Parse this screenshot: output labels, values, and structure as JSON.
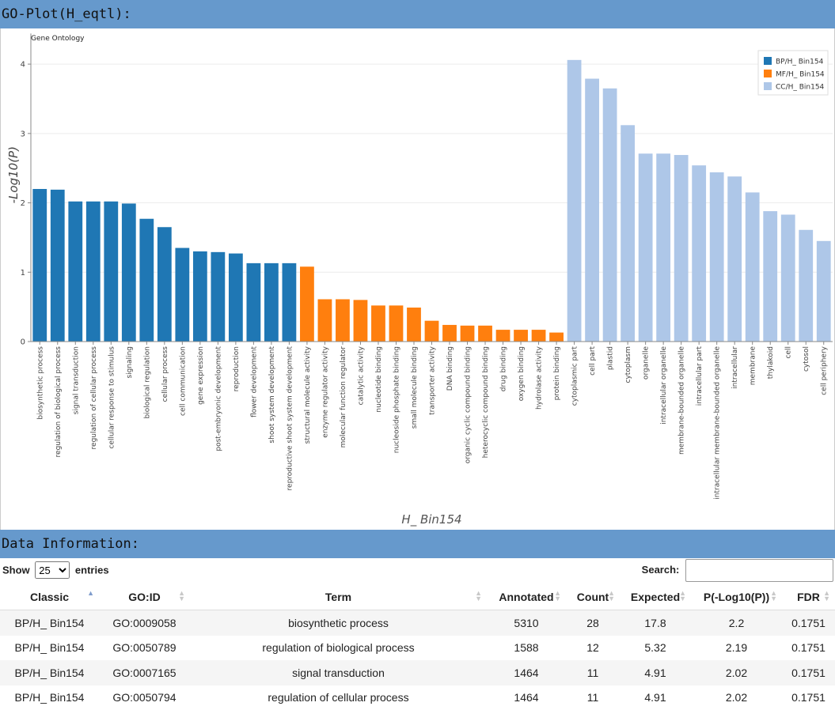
{
  "header": {
    "title": "GO-Plot(H_eqtl):"
  },
  "chart_data": {
    "type": "bar",
    "title": "Gene Ontology",
    "xlabel": "H_  Bin154",
    "ylabel": "-Log10(P)",
    "ylim": [
      0,
      4.35
    ],
    "yticks": [
      0,
      1,
      2,
      3,
      4
    ],
    "legend_position": "top-right",
    "series": [
      {
        "name": "BP/H_  Bin154",
        "color": "#1f77b4",
        "categories": [
          "biosynthetic process",
          "regulation of biological process",
          "signal transduction",
          "regulation of cellular process",
          "cellular response to stimulus",
          "signaling",
          "biological regulation",
          "cellular process",
          "cell communication",
          "gene expression",
          "post-embryonic development",
          "reproduction",
          "flower development",
          "shoot system development",
          "reproductive shoot system development"
        ],
        "values": [
          2.2,
          2.19,
          2.02,
          2.02,
          2.02,
          1.99,
          1.77,
          1.65,
          1.35,
          1.3,
          1.29,
          1.27,
          1.13,
          1.13,
          1.13
        ]
      },
      {
        "name": "MF/H_  Bin154",
        "color": "#ff7f0e",
        "categories": [
          "structural molecule activity",
          "enzyme regulator activity",
          "molecular function regulator",
          "catalytic activity",
          "nucleotide binding",
          "nucleoside phosphate binding",
          "small molecule binding",
          "transporter activity",
          "DNA binding",
          "organic cyclic compound binding",
          "heterocyclic compound binding",
          "drug binding",
          "oxygen binding",
          "hydrolase activity",
          "protein binding"
        ],
        "values": [
          1.08,
          0.61,
          0.61,
          0.6,
          0.52,
          0.52,
          0.49,
          0.3,
          0.24,
          0.23,
          0.23,
          0.17,
          0.17,
          0.17,
          0.13
        ]
      },
      {
        "name": "CC/H_  Bin154",
        "color": "#aec7e8",
        "categories": [
          "cytoplasmic part",
          "cell part",
          "plastid",
          "cytoplasm",
          "organelle",
          "intracellular organelle",
          "membrane-bounded organelle",
          "intracellular part",
          "intracellular membrane-bounded organelle",
          "intracellular",
          "membrane",
          "thylakoid",
          "cell",
          "cytosol",
          "cell periphery"
        ],
        "values": [
          4.06,
          3.79,
          3.65,
          3.12,
          2.71,
          2.71,
          2.69,
          2.54,
          2.44,
          2.38,
          2.15,
          1.88,
          1.83,
          1.61,
          1.45
        ]
      }
    ]
  },
  "data_section": {
    "title": "Data Information:",
    "show_label": "Show",
    "entries_label": "entries",
    "page_size": "25",
    "page_size_options": [
      "10",
      "25",
      "50",
      "100"
    ],
    "search_label": "Search:",
    "search_value": ""
  },
  "table": {
    "columns": [
      "Classic",
      "GO:ID",
      "Term",
      "Annotated",
      "Count",
      "Expected",
      "P(-Log10(P))",
      "FDR"
    ],
    "rows": [
      [
        "BP/H_ Bin154",
        "GO:0009058",
        "biosynthetic process",
        "5310",
        "28",
        "17.8",
        "2.2",
        "0.1751"
      ],
      [
        "BP/H_ Bin154",
        "GO:0050789",
        "regulation of biological process",
        "1588",
        "12",
        "5.32",
        "2.19",
        "0.1751"
      ],
      [
        "BP/H_ Bin154",
        "GO:0007165",
        "signal transduction",
        "1464",
        "11",
        "4.91",
        "2.02",
        "0.1751"
      ],
      [
        "BP/H_ Bin154",
        "GO:0050794",
        "regulation of cellular process",
        "1464",
        "11",
        "4.91",
        "2.02",
        "0.1751"
      ]
    ]
  }
}
